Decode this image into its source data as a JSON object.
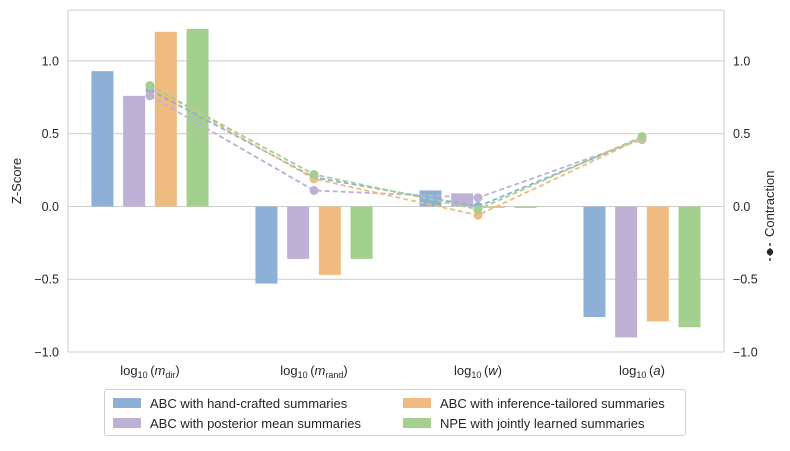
{
  "chart_data": {
    "type": "bar",
    "categories": [
      "log10(m_dir)",
      "log10(m_rand)",
      "log10(w)",
      "log10(a)"
    ],
    "category_labels": [
      {
        "base": "log",
        "sub": "10",
        "var": "m",
        "varsub": "dir"
      },
      {
        "base": "log",
        "sub": "10",
        "var": "m",
        "varsub": "rand"
      },
      {
        "base": "log",
        "sub": "10",
        "var": "w",
        "varsub": ""
      },
      {
        "base": "log",
        "sub": "10",
        "var": "a",
        "varsub": ""
      }
    ],
    "ylabel": "Z-Score",
    "ylabel_right": "Contraction",
    "ylim": [
      -1.0,
      1.35
    ],
    "yticks": [
      -1.0,
      -0.5,
      0.0,
      0.5,
      1.0
    ],
    "yticks_right": [
      -1.0,
      -0.5,
      0.0,
      0.5,
      1.0
    ],
    "grid": true,
    "legend_position": "bottom-center",
    "series": [
      {
        "name": "ABC with hand-crafted summaries",
        "color": "#8fb0d6",
        "line_color": "#8fb0d6",
        "values": [
          0.93,
          -0.53,
          0.11,
          -0.76
        ],
        "contraction": [
          0.8,
          0.2,
          0.0,
          0.47
        ]
      },
      {
        "name": "ABC with posterior mean summaries",
        "color": "#bfb0d6",
        "line_color": "#bfb0d6",
        "values": [
          0.76,
          -0.36,
          0.09,
          -0.9
        ],
        "contraction": [
          0.76,
          0.11,
          0.06,
          0.46
        ]
      },
      {
        "name": "ABC with inference-tailored summaries",
        "color": "#f0bb80",
        "line_color": "#f0bb80",
        "values": [
          1.2,
          -0.47,
          -0.01,
          -0.79
        ],
        "contraction": [
          0.83,
          0.19,
          -0.06,
          0.47
        ]
      },
      {
        "name": "NPE with jointly learned summaries",
        "color": "#a4d08f",
        "line_color": "#a4d08f",
        "values": [
          1.22,
          -0.36,
          -0.01,
          -0.83
        ],
        "contraction": [
          0.83,
          0.22,
          -0.02,
          0.48
        ]
      }
    ]
  }
}
